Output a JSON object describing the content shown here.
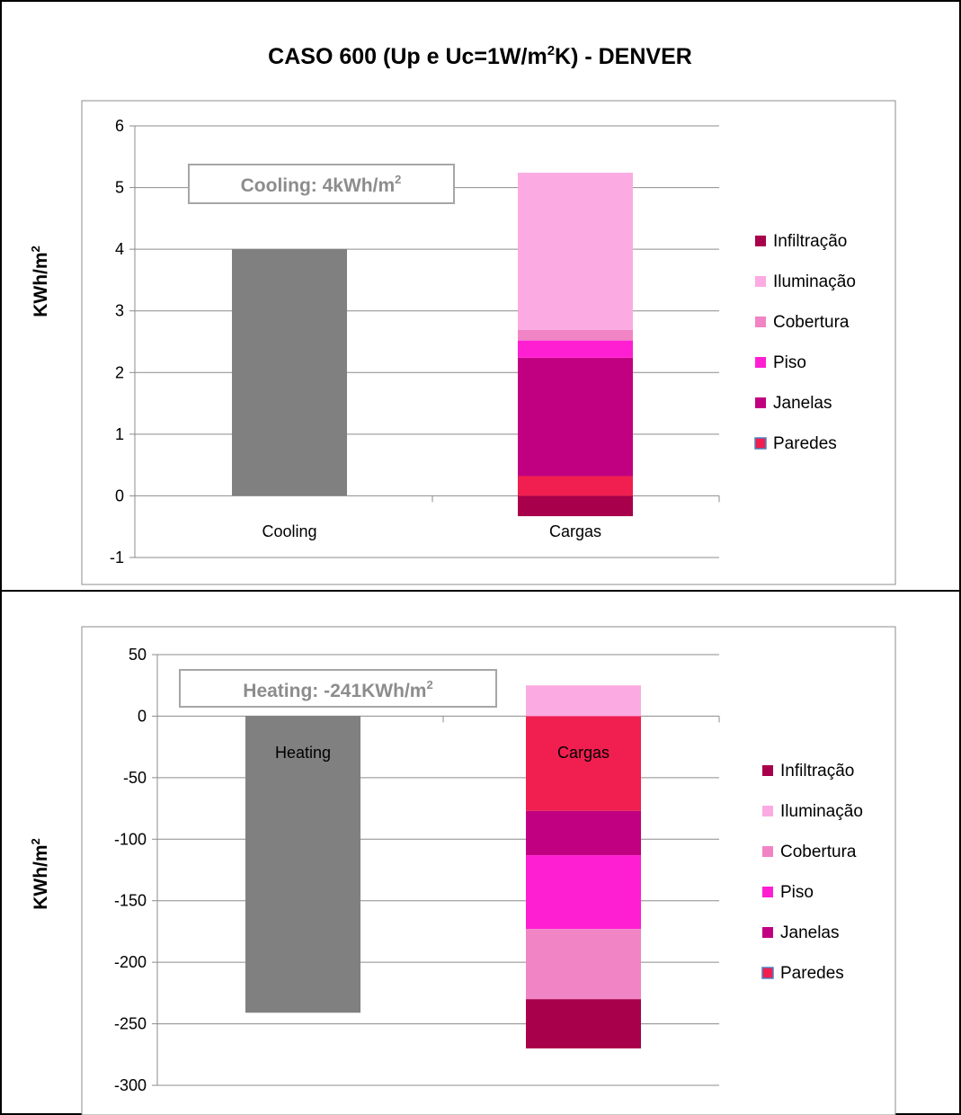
{
  "title_main": "CASO 600 (Up e Uc=1W/m",
  "title_sup": "2",
  "title_rest": "K) - DENVER",
  "colors": {
    "Infiltracao": "#a8004a",
    "Iluminacao": "#fbabe2",
    "Cobertura": "#f184c4",
    "Piso": "#ff1fd2",
    "Janelas": "#c10081",
    "Paredes": "#f01f4f",
    "total": "#808080",
    "grid": "#8c8c8c",
    "box_text": "#8c8c8c"
  },
  "chart_data": [
    {
      "type": "bar",
      "stacked": true,
      "categories": [
        "Cooling",
        "Cargas"
      ],
      "ylabel": "KWh/m",
      "ylabel_sup": "2",
      "ylim": [
        -1,
        6
      ],
      "yticks": [
        -1,
        0,
        1,
        2,
        3,
        4,
        5,
        6
      ],
      "grid": true,
      "legend": "right",
      "annotation": {
        "text": "Cooling: 4kWh/m",
        "sup": "2"
      },
      "total": {
        "name": "Cooling",
        "value": 4.0
      },
      "series": [
        {
          "name": "Infiltração",
          "value": -0.33
        },
        {
          "name": "Iluminação",
          "value": 2.55
        },
        {
          "name": "Cobertura",
          "value": 0.17
        },
        {
          "name": "Piso",
          "value": 0.28
        },
        {
          "name": "Janelas",
          "value": 1.92
        },
        {
          "name": "Paredes",
          "value": 0.32
        }
      ],
      "stack_order": [
        "Infiltração",
        "Paredes",
        "Janelas",
        "Piso",
        "Cobertura",
        "Iluminação"
      ],
      "legend_items": [
        "Infiltração",
        "Iluminação",
        "Cobertura",
        "Piso",
        "Janelas",
        "Paredes"
      ],
      "category_labels_inside": false
    },
    {
      "type": "bar",
      "stacked": true,
      "categories": [
        "Heating",
        "Cargas"
      ],
      "ylabel": "KWh/m",
      "ylabel_sup": "2",
      "ylim": [
        -300,
        50
      ],
      "yticks": [
        -300,
        -250,
        -200,
        -150,
        -100,
        -50,
        0,
        50
      ],
      "grid": true,
      "legend": "right",
      "annotation": {
        "text": "Heating: -241KWh/m",
        "sup": "2"
      },
      "total": {
        "name": "Heating",
        "value": -241
      },
      "series": [
        {
          "name": "Infiltração",
          "value": -40
        },
        {
          "name": "Iluminação",
          "value": 25
        },
        {
          "name": "Cobertura",
          "value": -57
        },
        {
          "name": "Piso",
          "value": -60
        },
        {
          "name": "Janelas",
          "value": -36
        },
        {
          "name": "Paredes",
          "value": -77
        }
      ],
      "stack_order": [
        "Paredes",
        "Janelas",
        "Piso",
        "Cobertura",
        "Infiltração",
        "Iluminação"
      ],
      "legend_items": [
        "Infiltração",
        "Iluminação",
        "Cobertura",
        "Piso",
        "Janelas",
        "Paredes"
      ],
      "category_labels_inside": true
    }
  ]
}
